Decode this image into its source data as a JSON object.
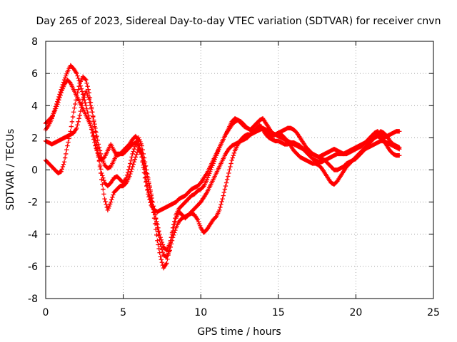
{
  "chart_data": {
    "type": "scatter",
    "title": "Day 265 of 2023, Sidereal Day-to-day VTEC variation (SDTVAR) for receiver cnvn",
    "xlabel": "GPS time / hours",
    "ylabel": "SDTVAR / TECUs",
    "xlim": [
      0,
      25
    ],
    "ylim": [
      -8,
      8
    ],
    "x_ticks": [
      0,
      5,
      10,
      15,
      20,
      25
    ],
    "y_ticks": [
      -8,
      -6,
      -4,
      -2,
      0,
      2,
      4,
      6,
      8
    ],
    "grid": true,
    "marker": "plus",
    "color": "#ff0000",
    "series": [
      {
        "x": [
          0.0,
          0.2,
          0.4,
          0.6,
          0.8,
          1.0,
          1.2,
          1.4,
          1.6,
          1.8,
          2.0,
          2.2,
          2.4,
          2.6,
          2.8,
          3.0,
          3.2,
          3.4,
          3.6,
          3.8,
          4.0,
          4.2,
          4.4,
          4.6,
          4.8,
          5.0,
          5.2,
          5.4,
          5.6,
          5.8,
          6.0,
          6.2,
          6.4,
          6.6,
          6.8,
          7.0,
          7.2,
          7.4,
          7.6,
          7.8,
          8.0,
          8.2,
          8.4,
          8.6,
          8.8,
          9.0,
          9.2,
          9.4,
          9.6,
          9.8,
          10.0,
          10.2,
          10.4,
          10.6,
          10.8,
          11.0,
          11.2,
          11.4,
          11.6,
          11.8,
          12.0,
          12.2,
          12.4,
          12.6,
          12.8,
          13.0,
          13.2,
          13.4,
          13.6,
          13.8,
          14.0,
          14.2,
          14.4,
          14.6,
          14.8,
          15.0,
          15.2,
          15.4,
          15.6,
          15.8,
          16.0,
          16.2,
          16.4,
          16.6,
          16.8,
          17.0,
          17.2,
          17.4,
          17.6,
          17.8,
          18.0,
          18.2,
          18.4,
          18.6,
          18.8,
          19.0,
          19.2,
          19.4,
          19.6,
          19.8,
          20.0,
          20.2,
          20.4,
          20.6,
          20.8,
          21.0,
          21.2,
          21.4,
          21.6,
          21.8,
          22.0,
          22.2,
          22.4,
          22.6,
          22.8
        ],
        "y": [
          2.5,
          2.8,
          3.2,
          3.8,
          4.4,
          5.0,
          5.6,
          6.1,
          6.5,
          6.3,
          6.0,
          5.4,
          4.7,
          4.0,
          3.2,
          2.3,
          1.5,
          0.9,
          0.6,
          0.8,
          1.2,
          1.6,
          1.2,
          0.9,
          1.0,
          1.2,
          1.4,
          1.6,
          1.9,
          2.1,
          1.8,
          0.8,
          -0.5,
          -1.5,
          -2.2,
          -2.5,
          -2.6,
          -2.5,
          -2.4,
          -2.3,
          -2.2,
          -2.1,
          -2.0,
          -1.8,
          -1.7,
          -1.6,
          -1.4,
          -1.2,
          -1.1,
          -1.0,
          -0.8,
          -0.5,
          -0.2,
          0.2,
          0.6,
          1.0,
          1.4,
          1.8,
          2.2,
          2.5,
          2.8,
          3.0,
          3.1,
          3.0,
          2.8,
          2.6,
          2.5,
          2.7,
          2.9,
          3.1,
          3.2,
          2.9,
          2.6,
          2.3,
          2.2,
          2.3,
          2.4,
          2.5,
          2.6,
          2.6,
          2.5,
          2.3,
          2.0,
          1.7,
          1.4,
          1.2,
          1.0,
          0.9,
          0.8,
          0.9,
          1.0,
          1.1,
          1.2,
          1.3,
          1.2,
          1.1,
          1.0,
          1.0,
          1.1,
          1.2,
          1.3,
          1.4,
          1.5,
          1.7,
          1.9,
          2.1,
          2.3,
          2.4,
          2.2,
          2.0,
          2.1,
          2.2,
          2.3,
          2.4,
          2.4
        ]
      },
      {
        "x": [
          0.0,
          0.2,
          0.4,
          0.6,
          0.8,
          1.0,
          1.2,
          1.4,
          1.6,
          1.8,
          2.0,
          2.2,
          2.4,
          2.6,
          2.8,
          3.0,
          3.2,
          3.4,
          3.6,
          3.8,
          4.0,
          4.2,
          4.4,
          4.6,
          4.8,
          5.0,
          5.2,
          5.4,
          5.6,
          5.8,
          6.0,
          6.2,
          6.4,
          6.6,
          6.8,
          7.0,
          7.2,
          7.4,
          7.6,
          7.8,
          8.0,
          8.2,
          8.4,
          8.6,
          8.8,
          9.0,
          9.2,
          9.4,
          9.6,
          9.8,
          10.0,
          10.2,
          10.4,
          10.6,
          10.8,
          11.0,
          11.2,
          11.4,
          11.6,
          11.8,
          12.0,
          12.2,
          12.4,
          12.6,
          12.8,
          13.0,
          13.2,
          13.4,
          13.6,
          13.8,
          14.0,
          14.2,
          14.4,
          14.6,
          14.8,
          15.0,
          15.2,
          15.4,
          15.6,
          15.8,
          16.0,
          16.2,
          16.4,
          16.6,
          16.8,
          17.0,
          17.2,
          17.4,
          17.6,
          17.8,
          18.0,
          18.2,
          18.4,
          18.6,
          18.8,
          19.0,
          19.2,
          19.4,
          19.6,
          19.8,
          20.0,
          20.2,
          20.4,
          20.6,
          20.8,
          21.0,
          21.2,
          21.4,
          21.6,
          21.8,
          22.0,
          22.2,
          22.4,
          22.6,
          22.8
        ],
        "y": [
          2.9,
          3.1,
          3.3,
          3.7,
          4.2,
          4.8,
          5.3,
          5.6,
          5.4,
          5.0,
          4.6,
          4.2,
          3.8,
          3.4,
          3.0,
          2.5,
          1.8,
          0.8,
          -0.2,
          -0.8,
          -1.0,
          -0.8,
          -0.5,
          -0.4,
          -0.6,
          -0.8,
          -0.5,
          0.2,
          1.0,
          1.6,
          2.0,
          1.5,
          0.5,
          -0.5,
          -1.5,
          -2.5,
          -3.6,
          -4.6,
          -5.3,
          -5.4,
          -5.0,
          -4.2,
          -3.6,
          -3.2,
          -3.0,
          -2.9,
          -2.8,
          -2.6,
          -2.4,
          -2.2,
          -2.0,
          -1.7,
          -1.4,
          -1.0,
          -0.6,
          -0.2,
          0.2,
          0.6,
          1.0,
          1.3,
          1.5,
          1.6,
          1.7,
          1.8,
          1.9,
          2.0,
          2.2,
          2.4,
          2.6,
          2.8,
          2.5,
          2.2,
          2.0,
          1.9,
          1.8,
          1.8,
          1.7,
          1.6,
          1.6,
          1.7,
          1.7,
          1.6,
          1.5,
          1.3,
          1.1,
          0.9,
          0.7,
          0.6,
          0.5,
          0.5,
          0.6,
          0.7,
          0.8,
          0.9,
          1.0,
          1.0,
          1.0,
          1.1,
          1.2,
          1.3,
          1.4,
          1.5,
          1.6,
          1.7,
          1.8,
          1.9,
          2.0,
          2.1,
          2.0,
          1.8,
          1.5,
          1.2,
          1.0,
          0.9,
          0.9
        ]
      },
      {
        "x": [
          0.0,
          0.2,
          0.4,
          0.6,
          0.8,
          1.0,
          1.2,
          1.4,
          1.6,
          1.8,
          2.0,
          2.2,
          2.4,
          2.6,
          2.8,
          3.0,
          3.2,
          3.4,
          3.6,
          3.8,
          4.0,
          4.2,
          4.4,
          4.6,
          4.8,
          5.0,
          5.2,
          5.4,
          5.6,
          5.8,
          6.0,
          6.2,
          6.4,
          6.6,
          6.8,
          7.0,
          7.2,
          7.4,
          7.6,
          7.8,
          8.0,
          8.2,
          8.4,
          8.6,
          8.8,
          9.0,
          9.2,
          9.4,
          9.6,
          9.8,
          10.0,
          10.2,
          10.4,
          10.6,
          10.8,
          11.0,
          11.2,
          11.4,
          11.6,
          11.8,
          12.0,
          12.2,
          12.4,
          12.6,
          12.8,
          13.0,
          13.2,
          13.4,
          13.6,
          13.8,
          14.0,
          14.2,
          14.4,
          14.6,
          14.8,
          15.0,
          15.2,
          15.4,
          15.6,
          15.8,
          16.0,
          16.2,
          16.4,
          16.6,
          16.8,
          17.0,
          17.2,
          17.4,
          17.6,
          17.8,
          18.0,
          18.2,
          18.4,
          18.6,
          18.8,
          19.0,
          19.2,
          19.4,
          19.6,
          19.8,
          20.0,
          20.2,
          20.4,
          20.6,
          20.8,
          21.0,
          21.2,
          21.4,
          21.6,
          21.8,
          22.0,
          22.2,
          22.4,
          22.6,
          22.8
        ],
        "y": [
          1.8,
          1.7,
          1.6,
          1.7,
          1.8,
          1.9,
          2.0,
          2.1,
          2.2,
          2.3,
          2.6,
          3.4,
          4.4,
          4.9,
          4.4,
          3.6,
          2.6,
          1.6,
          0.8,
          0.3,
          0.1,
          0.2,
          0.6,
          1.0,
          1.0,
          1.0,
          1.2,
          1.4,
          1.6,
          1.7,
          1.5,
          0.8,
          -0.2,
          -1.2,
          -2.0,
          -2.6,
          -3.4,
          -4.2,
          -4.8,
          -5.0,
          -4.6,
          -3.8,
          -3.0,
          -2.6,
          -2.8,
          -3.0,
          -2.8,
          -2.7,
          -2.8,
          -3.1,
          -3.6,
          -3.9,
          -3.7,
          -3.4,
          -3.1,
          -2.9,
          -2.5,
          -1.8,
          -1.0,
          -0.2,
          0.6,
          1.2,
          1.6,
          1.9,
          2.1,
          2.2,
          2.2,
          2.3,
          2.4,
          2.5,
          2.6,
          2.5,
          2.4,
          2.3,
          2.2,
          2.1,
          2.0,
          1.9,
          1.8,
          1.7,
          1.6,
          1.5,
          1.4,
          1.3,
          1.2,
          1.1,
          1.0,
          0.9,
          0.8,
          0.7,
          0.6,
          0.4,
          0.2,
          0.0,
          0.0,
          0.1,
          0.2,
          0.4,
          0.5,
          0.6,
          0.7,
          0.9,
          1.1,
          1.3,
          1.4,
          1.5,
          1.6,
          1.7,
          1.8,
          1.8,
          1.7,
          1.6,
          1.5,
          1.4,
          1.3
        ]
      },
      {
        "x": [
          0.0,
          0.2,
          0.4,
          0.6,
          0.8,
          1.0,
          1.2,
          1.4,
          1.6,
          1.8,
          2.0,
          2.2,
          2.4,
          2.6,
          2.8,
          3.0,
          3.2,
          3.4,
          3.6,
          3.8,
          4.0,
          4.2,
          4.4,
          4.6,
          4.8,
          5.0,
          5.2,
          5.4,
          5.6,
          5.8,
          6.0,
          6.2,
          6.4,
          6.6,
          6.8,
          7.0,
          7.2,
          7.4,
          7.6,
          7.8,
          8.0,
          8.2,
          8.4,
          8.6,
          8.8,
          9.0,
          9.2,
          9.4,
          9.6,
          9.8,
          10.0,
          10.2,
          10.4,
          10.6,
          10.8,
          11.0,
          11.2,
          11.4,
          11.6,
          11.8,
          12.0,
          12.2,
          12.4,
          12.6,
          12.8,
          13.0,
          13.2,
          13.4,
          13.6,
          13.8,
          14.0,
          14.2,
          14.4,
          14.6,
          14.8,
          15.0,
          15.2,
          15.4,
          15.6,
          15.8,
          16.0,
          16.2,
          16.4,
          16.6,
          16.8,
          17.0,
          17.2,
          17.4,
          17.6,
          17.8,
          18.0,
          18.2,
          18.4,
          18.6,
          18.8,
          19.0,
          19.2,
          19.4,
          19.6,
          19.8,
          20.0,
          20.2,
          20.4,
          20.6,
          20.8,
          21.0,
          21.2,
          21.4,
          21.6,
          21.8,
          22.0,
          22.2,
          22.4,
          22.6,
          22.8
        ],
        "y": [
          0.6,
          0.4,
          0.2,
          0.0,
          -0.2,
          -0.1,
          0.5,
          1.5,
          2.4,
          3.6,
          4.6,
          5.4,
          5.8,
          5.6,
          4.8,
          3.6,
          2.4,
          1.0,
          -0.6,
          -1.8,
          -2.5,
          -2.0,
          -1.4,
          -1.2,
          -1.0,
          -1.0,
          -0.8,
          -0.4,
          0.2,
          0.8,
          1.4,
          1.0,
          0.2,
          -0.6,
          -1.6,
          -3.0,
          -4.4,
          -5.4,
          -6.1,
          -5.8,
          -4.8,
          -3.6,
          -2.8,
          -2.4,
          -2.2,
          -2.0,
          -1.8,
          -1.6,
          -1.5,
          -1.3,
          -1.2,
          -1.0,
          -0.6,
          -0.1,
          0.4,
          0.9,
          1.4,
          1.8,
          2.2,
          2.6,
          3.0,
          3.2,
          3.1,
          2.9,
          2.7,
          2.6,
          2.5,
          2.4,
          2.4,
          2.5,
          2.6,
          2.4,
          2.2,
          2.1,
          2.2,
          2.3,
          2.2,
          2.0,
          1.8,
          1.5,
          1.2,
          1.0,
          0.8,
          0.7,
          0.6,
          0.5,
          0.4,
          0.4,
          0.3,
          0.1,
          -0.2,
          -0.5,
          -0.8,
          -0.9,
          -0.7,
          -0.4,
          -0.1,
          0.2,
          0.4,
          0.6,
          0.8,
          1.0,
          1.2,
          1.4,
          1.6,
          1.8,
          2.0,
          2.2,
          2.4,
          2.3,
          2.1,
          1.8,
          1.6,
          1.5,
          1.4
        ]
      }
    ]
  }
}
